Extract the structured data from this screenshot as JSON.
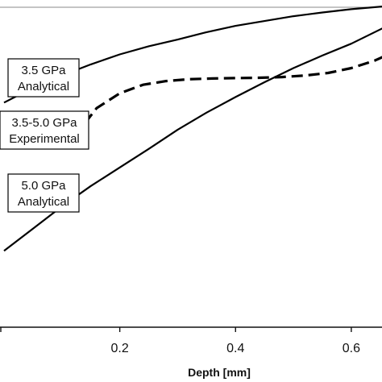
{
  "chart_data": {
    "type": "line",
    "title": "",
    "xlabel": "Depth [mm]",
    "ylabel": "",
    "xlim": [
      0,
      0.66
    ],
    "x_ticks": [
      0.2,
      0.4,
      0.6
    ],
    "x_tick_labels": [
      "0.2",
      "0.4",
      "0.6"
    ],
    "grid": false,
    "series": [
      {
        "name": "3.5 GPa Analytical",
        "style": "solid",
        "points": [
          [
            0.0,
            0.745
          ],
          [
            0.05,
            0.785
          ],
          [
            0.1,
            0.818
          ],
          [
            0.15,
            0.848
          ],
          [
            0.2,
            0.875
          ],
          [
            0.25,
            0.897
          ],
          [
            0.3,
            0.915
          ],
          [
            0.35,
            0.935
          ],
          [
            0.4,
            0.952
          ],
          [
            0.45,
            0.965
          ],
          [
            0.5,
            0.978
          ],
          [
            0.55,
            0.988
          ],
          [
            0.6,
            0.997
          ],
          [
            0.66,
            1.005
          ]
        ]
      },
      {
        "name": "3.5-5.0 GPa Experimental",
        "style": "dashed",
        "points": [
          [
            0.14,
            0.69
          ],
          [
            0.16,
            0.73
          ],
          [
            0.2,
            0.77
          ],
          [
            0.24,
            0.793
          ],
          [
            0.28,
            0.803
          ],
          [
            0.32,
            0.808
          ],
          [
            0.36,
            0.81
          ],
          [
            0.4,
            0.811
          ],
          [
            0.44,
            0.812
          ],
          [
            0.48,
            0.814
          ],
          [
            0.52,
            0.818
          ],
          [
            0.56,
            0.825
          ],
          [
            0.6,
            0.838
          ],
          [
            0.64,
            0.858
          ],
          [
            0.66,
            0.872
          ]
        ]
      },
      {
        "name": "5.0 GPa Analytical",
        "style": "solid",
        "points": [
          [
            0.0,
            0.345
          ],
          [
            0.05,
            0.405
          ],
          [
            0.1,
            0.465
          ],
          [
            0.15,
            0.52
          ],
          [
            0.2,
            0.57
          ],
          [
            0.25,
            0.62
          ],
          [
            0.3,
            0.672
          ],
          [
            0.35,
            0.718
          ],
          [
            0.4,
            0.76
          ],
          [
            0.45,
            0.8
          ],
          [
            0.5,
            0.838
          ],
          [
            0.55,
            0.872
          ],
          [
            0.6,
            0.904
          ],
          [
            0.66,
            0.95
          ]
        ]
      }
    ],
    "annotations": [
      {
        "lines": [
          "3.5 GPa",
          "Analytical"
        ]
      },
      {
        "lines": [
          "3.5-5.0 GPa",
          "Experimental"
        ]
      },
      {
        "lines": [
          "5.0 GPa",
          "Analytical"
        ]
      }
    ]
  }
}
